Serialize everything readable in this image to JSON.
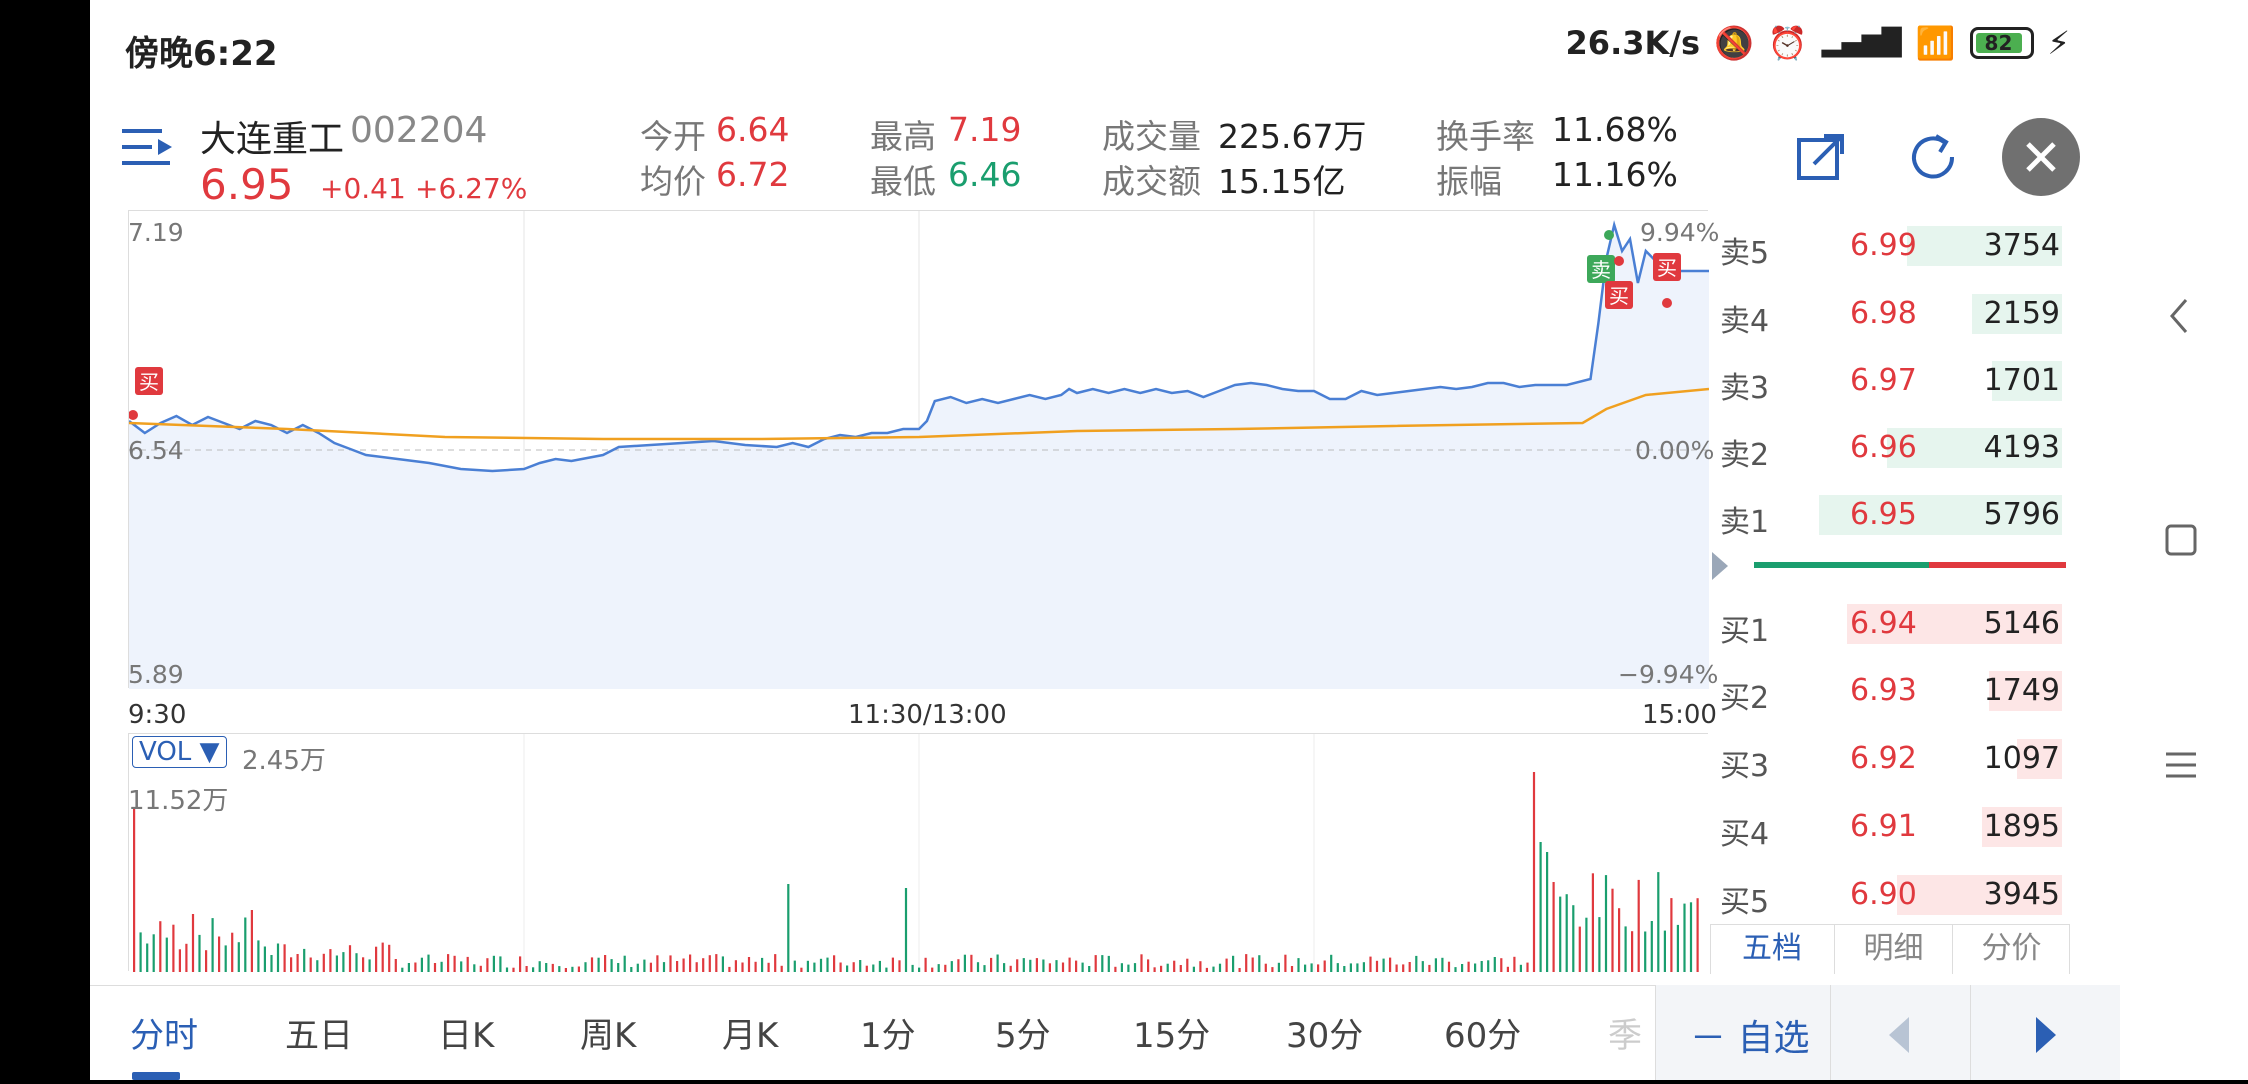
{
  "status": {
    "time": "傍晚6:22",
    "net_speed": "26.3K/s",
    "battery": "82"
  },
  "stock": {
    "name": "大连重工",
    "code": "002204",
    "price": "6.95",
    "change": "+0.41",
    "change_pct": "+6.27%"
  },
  "stats": {
    "open_label": "今开",
    "open_value": "6.64",
    "avg_label": "均价",
    "avg_value": "6.72",
    "high_label": "最高",
    "high_value": "7.19",
    "low_label": "最低",
    "low_value": "6.46",
    "volume_label": "成交量",
    "volume_value": "225.67万",
    "amount_label": "成交额",
    "amount_value": "15.15亿",
    "turnover_label": "换手率",
    "turnover_value": "11.68%",
    "amplitude_label": "振幅",
    "amplitude_value": "11.16%"
  },
  "chart": {
    "y_top": "7.19",
    "y_mid": "6.54",
    "y_bottom": "5.89",
    "pct_top": "9.94%",
    "pct_mid": "0.00%",
    "pct_bottom": "−9.94%",
    "x_start": "9:30",
    "x_mid": "11:30/13:00",
    "x_end": "15:00",
    "buy_marker": "买",
    "sell_marker": "卖",
    "price_color": "#4a7fd4",
    "avg_color": "#f0a020"
  },
  "volume": {
    "selector": "VOL ▼",
    "current": "2.45万",
    "max": "11.52万"
  },
  "orderbook": {
    "asks": [
      {
        "name": "卖5",
        "price": "6.99",
        "qty": "3754",
        "ratio": 0.62
      },
      {
        "name": "卖4",
        "price": "6.98",
        "qty": "2159",
        "ratio": 0.36
      },
      {
        "name": "卖3",
        "price": "6.97",
        "qty": "1701",
        "ratio": 0.28
      },
      {
        "name": "卖2",
        "price": "6.96",
        "qty": "4193",
        "ratio": 0.7
      },
      {
        "name": "卖1",
        "price": "6.95",
        "qty": "5796",
        "ratio": 0.97
      }
    ],
    "bids": [
      {
        "name": "买1",
        "price": "6.94",
        "qty": "5146",
        "ratio": 0.86
      },
      {
        "name": "买2",
        "price": "6.93",
        "qty": "1749",
        "ratio": 0.29
      },
      {
        "name": "买3",
        "price": "6.92",
        "qty": "1097",
        "ratio": 0.18
      },
      {
        "name": "买4",
        "price": "6.91",
        "qty": "1895",
        "ratio": 0.32
      },
      {
        "name": "买5",
        "price": "6.90",
        "qty": "3945",
        "ratio": 0.66
      }
    ],
    "tabs": [
      "五档",
      "明细",
      "分价"
    ]
  },
  "period_tabs": [
    "分时",
    "五日",
    "日K",
    "周K",
    "月K",
    "1分",
    "5分",
    "15分",
    "30分",
    "60分",
    "季"
  ],
  "actions": {
    "watchlist": "－ 自选"
  }
}
